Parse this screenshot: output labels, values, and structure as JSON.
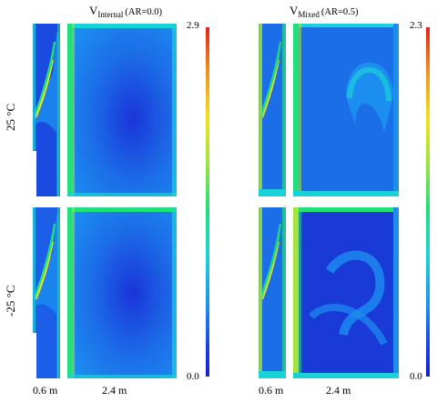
{
  "figure": {
    "titles": {
      "left": {
        "base": "V",
        "sub": "Internal",
        "rest": "(AR=0.0)"
      },
      "right": {
        "base": "V",
        "sub": "Mixed",
        "rest": "(AR=0.5)"
      }
    },
    "row_labels": {
      "top": "25 °C",
      "bottom": "-25 °C"
    },
    "colorbars": {
      "left": {
        "max": "2.9",
        "min": "0.0"
      },
      "right": {
        "max": "2.3",
        "min": "0.0"
      }
    },
    "dimensions": {
      "narrow": "0.6 m",
      "wide": "2.4 m"
    },
    "colors": {
      "low": "#1a2fd8",
      "mid_low": "#1c8ef0",
      "mid": "#19d2d8",
      "high": "#1fe07a",
      "higher": "#a3e43a",
      "peak": "#f2e21d",
      "max": "#e8201a"
    }
  }
}
